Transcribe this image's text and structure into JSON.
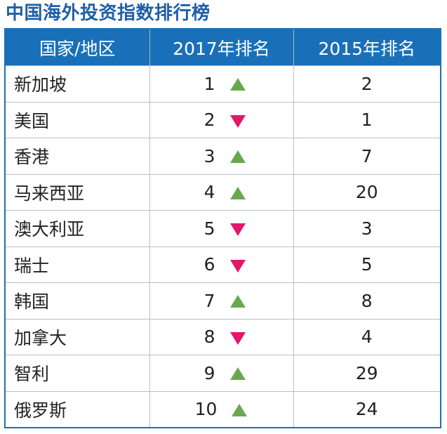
{
  "title": "中国海外投资指数排行榜",
  "table": {
    "headers": [
      "国家/地区",
      "2017年排名",
      "2015年排名"
    ],
    "rows": [
      {
        "country": "新加坡",
        "rank_2017": "1",
        "trend": "up",
        "rank_2015": "2"
      },
      {
        "country": "美国",
        "rank_2017": "2",
        "trend": "down",
        "rank_2015": "1"
      },
      {
        "country": "香港",
        "rank_2017": "3",
        "trend": "up",
        "rank_2015": "7"
      },
      {
        "country": "马来西亚",
        "rank_2017": "4",
        "trend": "up",
        "rank_2015": "20"
      },
      {
        "country": "澳大利亚",
        "rank_2017": "5",
        "trend": "down",
        "rank_2015": "3"
      },
      {
        "country": "瑞士",
        "rank_2017": "6",
        "trend": "down",
        "rank_2015": "5"
      },
      {
        "country": "韩国",
        "rank_2017": "7",
        "trend": "up",
        "rank_2015": "8"
      },
      {
        "country": "加拿大",
        "rank_2017": "8",
        "trend": "down",
        "rank_2015": "4"
      },
      {
        "country": "智利",
        "rank_2017": "9",
        "trend": "up",
        "rank_2015": "29"
      },
      {
        "country": "俄罗斯",
        "rank_2017": "10",
        "trend": "up",
        "rank_2015": "24"
      }
    ]
  },
  "colors": {
    "title": "#1f5fa8",
    "header_bg": "#1a70b8",
    "up_arrow": "#6aa84f",
    "down_arrow": "#e0176a"
  },
  "icons": {
    "up": "triangle-up-icon",
    "down": "triangle-down-icon"
  }
}
